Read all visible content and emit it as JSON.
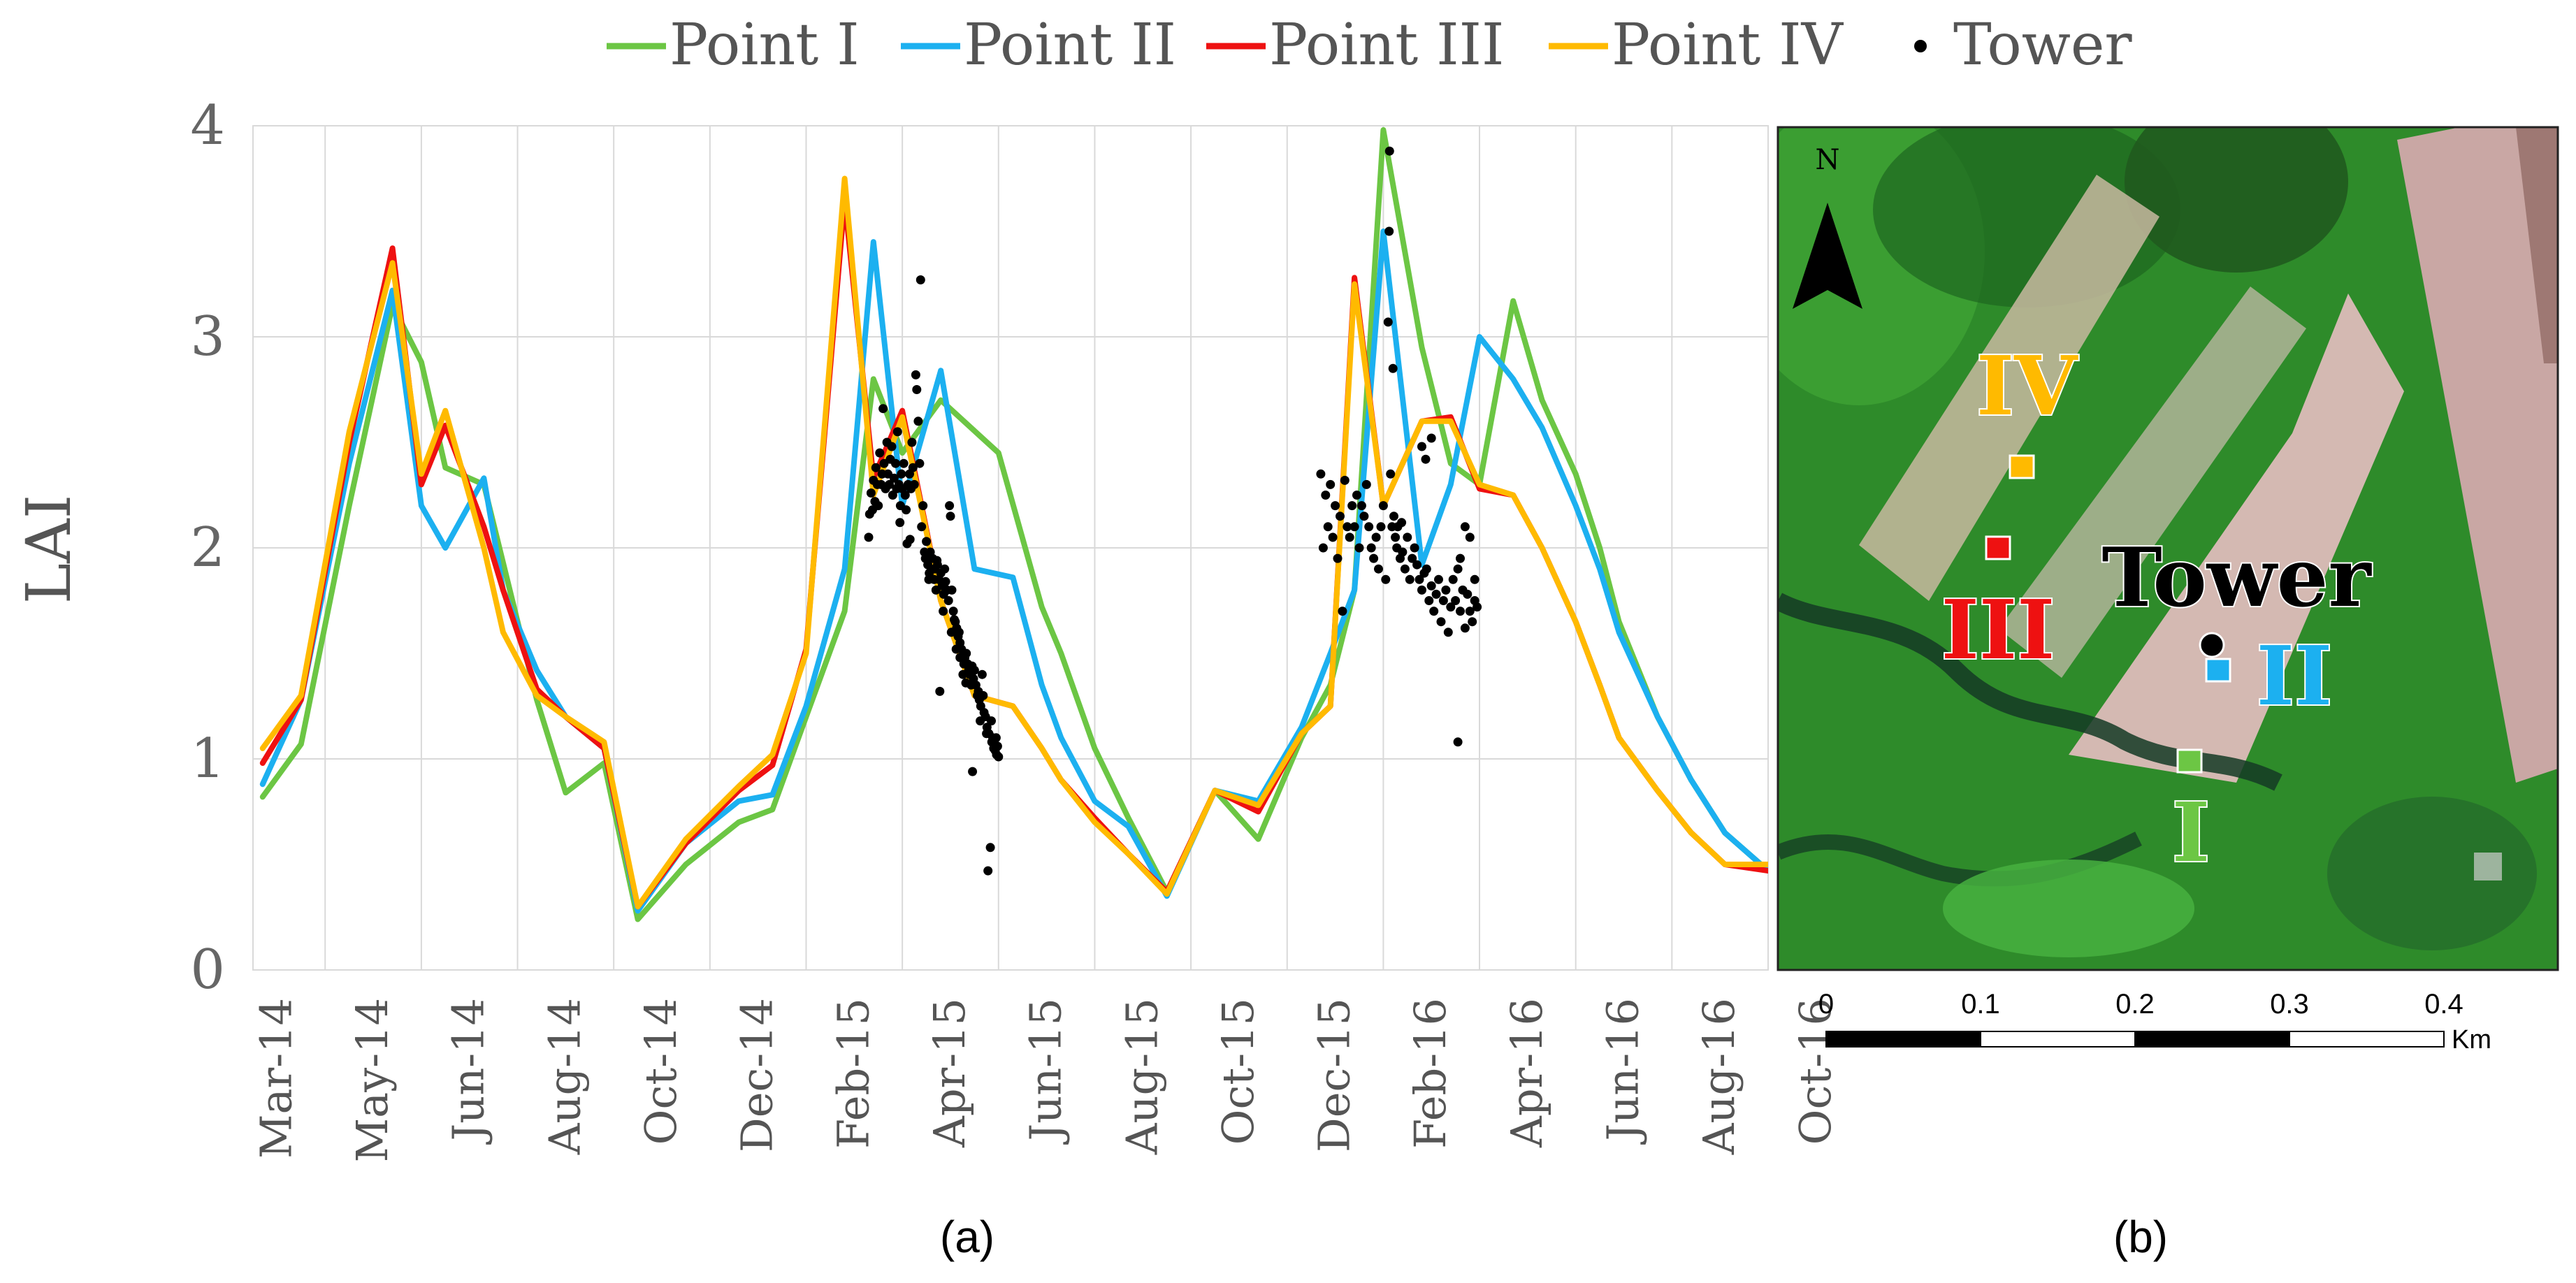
{
  "legend": {
    "items": [
      {
        "label": "Point I",
        "color": "#6CC644",
        "kind": "line"
      },
      {
        "label": "Point II",
        "color": "#1CB0F0",
        "kind": "line"
      },
      {
        "label": "Point III",
        "color": "#EE1111",
        "kind": "line"
      },
      {
        "label": "Point IV",
        "color": "#FFBA00",
        "kind": "line"
      },
      {
        "label": "Tower",
        "color": "#000000",
        "kind": "dot"
      }
    ]
  },
  "captions": {
    "a": "(a)",
    "b": "(b)"
  },
  "chart_data": {
    "type": "line",
    "title": "",
    "xlabel": "",
    "ylabel": "LAI",
    "ylim": [
      0,
      4
    ],
    "yticks": [
      "0",
      "1",
      "2",
      "3",
      "4"
    ],
    "xlim": [
      0,
      31.5
    ],
    "grid": true,
    "legend_position": "top",
    "categories": [
      "Mar-14",
      "May-14",
      "Jun-14",
      "Aug-14",
      "Oct-14",
      "Dec-14",
      "Feb-15",
      "Apr-15",
      "Jun-15",
      "Aug-15",
      "Oct-15",
      "Dec-15",
      "Feb-16",
      "Apr-16",
      "Jun-16",
      "Aug-16",
      "Oct-16"
    ],
    "series": [
      {
        "name": "Point I",
        "color": "#6CC644",
        "x": [
          0.2,
          1.0,
          2.0,
          2.9,
          3.5,
          4.0,
          4.8,
          5.9,
          6.5,
          7.3,
          8.0,
          9.0,
          10.1,
          10.8,
          11.5,
          12.3,
          12.9,
          13.5,
          14.3,
          15.5,
          16.4,
          16.8,
          17.5,
          18.2,
          19.0,
          20.0,
          20.9,
          21.8,
          22.4,
          22.9,
          23.5,
          24.3,
          24.9,
          25.5,
          26.2,
          26.8,
          27.5,
          28.0,
          28.4,
          29.2,
          29.9,
          30.6,
          31.5
        ],
        "y": [
          0.82,
          1.07,
          2.2,
          3.15,
          2.88,
          2.38,
          2.3,
          1.28,
          0.84,
          0.98,
          0.24,
          0.5,
          0.7,
          0.76,
          1.2,
          1.7,
          2.8,
          2.45,
          2.7,
          2.45,
          1.72,
          1.5,
          1.05,
          0.72,
          0.37,
          0.85,
          0.62,
          1.1,
          1.35,
          1.8,
          3.98,
          2.95,
          2.4,
          2.3,
          3.17,
          2.7,
          2.35,
          2.0,
          1.65,
          1.2,
          0.9,
          0.65,
          0.47
        ]
      },
      {
        "name": "Point II",
        "color": "#1CB0F0",
        "x": [
          0.2,
          1.0,
          2.0,
          2.9,
          3.5,
          4.0,
          4.8,
          5.2,
          5.9,
          6.5,
          7.3,
          8.0,
          9.0,
          10.1,
          10.8,
          11.5,
          12.3,
          12.9,
          13.5,
          14.3,
          15.0,
          15.8,
          16.4,
          16.8,
          17.5,
          18.2,
          19.0,
          20.0,
          20.9,
          21.8,
          22.4,
          22.9,
          23.5,
          24.3,
          24.9,
          25.5,
          26.2,
          26.8,
          27.5,
          28.0,
          28.4,
          29.2,
          29.9,
          30.6,
          31.5
        ],
        "y": [
          0.88,
          1.28,
          2.4,
          3.22,
          2.2,
          2.0,
          2.33,
          1.8,
          1.42,
          1.2,
          1.05,
          0.28,
          0.6,
          0.8,
          0.83,
          1.25,
          1.9,
          3.45,
          2.2,
          2.84,
          1.9,
          1.86,
          1.35,
          1.1,
          0.8,
          0.68,
          0.35,
          0.85,
          0.8,
          1.15,
          1.5,
          1.8,
          3.5,
          1.92,
          2.3,
          3.0,
          2.8,
          2.57,
          2.2,
          1.9,
          1.6,
          1.2,
          0.9,
          0.65,
          0.47
        ]
      },
      {
        "name": "Point III",
        "color": "#EE1111",
        "x": [
          0.2,
          1.0,
          2.0,
          2.9,
          3.5,
          4.0,
          4.8,
          5.2,
          5.9,
          6.5,
          7.3,
          8.0,
          9.0,
          10.1,
          10.8,
          11.5,
          12.3,
          12.9,
          13.5,
          14.3,
          15.0,
          15.8,
          16.4,
          16.8,
          17.5,
          18.2,
          19.0,
          20.0,
          20.9,
          21.8,
          22.4,
          22.9,
          23.5,
          24.3,
          24.9,
          25.5,
          26.2,
          26.8,
          27.5,
          28.0,
          28.4,
          29.2,
          29.9,
          30.6,
          31.5
        ],
        "y": [
          0.98,
          1.28,
          2.5,
          3.42,
          2.3,
          2.58,
          2.1,
          1.8,
          1.33,
          1.2,
          1.05,
          0.3,
          0.6,
          0.85,
          0.97,
          1.52,
          3.65,
          2.33,
          2.65,
          1.75,
          1.3,
          1.25,
          1.05,
          0.9,
          0.72,
          0.55,
          0.37,
          0.85,
          0.75,
          1.12,
          1.25,
          3.28,
          2.2,
          2.6,
          2.62,
          2.28,
          2.25,
          2.0,
          1.65,
          1.35,
          1.1,
          0.85,
          0.65,
          0.5,
          0.47
        ]
      },
      {
        "name": "Point IV",
        "color": "#FFBA00",
        "x": [
          0.2,
          1.0,
          2.0,
          2.9,
          3.5,
          4.0,
          4.8,
          5.2,
          5.9,
          6.5,
          7.3,
          8.0,
          9.0,
          10.1,
          10.8,
          11.5,
          12.3,
          12.9,
          13.5,
          14.3,
          15.0,
          15.8,
          16.4,
          16.8,
          17.5,
          18.2,
          19.0,
          20.0,
          20.9,
          21.8,
          22.4,
          22.9,
          23.5,
          24.3,
          24.9,
          25.5,
          26.2,
          26.8,
          27.5,
          28.0,
          28.4,
          29.2,
          29.9,
          30.6,
          31.5
        ],
        "y": [
          1.05,
          1.3,
          2.55,
          3.35,
          2.35,
          2.65,
          2.0,
          1.6,
          1.3,
          1.2,
          1.08,
          0.3,
          0.62,
          0.87,
          1.02,
          1.5,
          3.75,
          2.25,
          2.62,
          1.75,
          1.3,
          1.25,
          1.05,
          0.9,
          0.7,
          0.55,
          0.36,
          0.85,
          0.78,
          1.12,
          1.25,
          3.25,
          2.2,
          2.6,
          2.6,
          2.3,
          2.25,
          2.0,
          1.65,
          1.35,
          1.1,
          0.85,
          0.65,
          0.5,
          0.5
        ]
      }
    ],
    "scatter": {
      "name": "Tower",
      "color": "#000000",
      "points": [
        [
          12.8,
          2.05
        ],
        [
          12.82,
          2.16
        ],
        [
          12.85,
          2.26
        ],
        [
          12.88,
          2.18
        ],
        [
          12.9,
          2.32
        ],
        [
          12.93,
          2.22
        ],
        [
          12.95,
          2.38
        ],
        [
          12.98,
          2.3
        ],
        [
          13.0,
          2.2
        ],
        [
          13.03,
          2.45
        ],
        [
          13.06,
          2.3
        ],
        [
          13.08,
          2.35
        ],
        [
          13.1,
          2.66
        ],
        [
          13.12,
          2.4
        ],
        [
          13.15,
          2.28
        ],
        [
          13.18,
          2.5
        ],
        [
          13.2,
          2.35
        ],
        [
          13.23,
          2.3
        ],
        [
          13.25,
          2.42
        ],
        [
          13.28,
          2.48
        ],
        [
          13.3,
          2.25
        ],
        [
          13.33,
          2.33
        ],
        [
          13.36,
          2.4
        ],
        [
          13.38,
          2.28
        ],
        [
          13.4,
          2.55
        ],
        [
          13.43,
          2.3
        ],
        [
          13.46,
          2.2
        ],
        [
          13.48,
          2.35
        ],
        [
          13.5,
          2.28
        ],
        [
          13.53,
          2.4
        ],
        [
          13.56,
          2.25
        ],
        [
          13.58,
          2.18
        ],
        [
          13.6,
          2.02
        ],
        [
          13.62,
          2.3
        ],
        [
          13.65,
          2.35
        ],
        [
          13.68,
          2.28
        ],
        [
          13.7,
          2.5
        ],
        [
          13.72,
          2.38
        ],
        [
          13.75,
          2.3
        ],
        [
          13.78,
          2.82
        ],
        [
          13.8,
          2.75
        ],
        [
          13.83,
          2.6
        ],
        [
          13.86,
          2.4
        ],
        [
          13.88,
          3.27
        ],
        [
          13.9,
          2.1
        ],
        [
          13.93,
          2.2
        ],
        [
          13.96,
          1.98
        ],
        [
          13.98,
          1.95
        ],
        [
          14.0,
          2.03
        ],
        [
          14.03,
          1.92
        ],
        [
          14.06,
          1.88
        ],
        [
          14.08,
          1.98
        ],
        [
          14.1,
          1.9
        ],
        [
          14.13,
          1.95
        ],
        [
          14.16,
          1.85
        ],
        [
          14.18,
          1.9
        ],
        [
          14.2,
          1.8
        ],
        [
          14.23,
          1.92
        ],
        [
          14.26,
          1.85
        ],
        [
          14.28,
          1.32
        ],
        [
          14.3,
          1.88
        ],
        [
          14.33,
          1.82
        ],
        [
          14.36,
          1.78
        ],
        [
          14.38,
          1.9
        ],
        [
          14.4,
          1.84
        ],
        [
          14.43,
          1.8
        ],
        [
          14.46,
          1.75
        ],
        [
          14.48,
          2.2
        ],
        [
          14.5,
          2.15
        ],
        [
          14.53,
          1.8
        ],
        [
          14.56,
          1.7
        ],
        [
          14.58,
          1.66
        ],
        [
          14.6,
          1.65
        ],
        [
          14.63,
          1.62
        ],
        [
          14.66,
          1.58
        ],
        [
          14.68,
          1.6
        ],
        [
          14.7,
          1.55
        ],
        [
          14.73,
          1.52
        ],
        [
          14.76,
          1.4
        ],
        [
          14.78,
          1.45
        ],
        [
          14.8,
          1.48
        ],
        [
          14.83,
          1.5
        ],
        [
          14.86,
          1.45
        ],
        [
          14.88,
          1.42
        ],
        [
          14.9,
          1.4
        ],
        [
          14.93,
          1.35
        ],
        [
          14.96,
          0.94
        ],
        [
          14.98,
          1.38
        ],
        [
          15.0,
          1.42
        ],
        [
          15.03,
          1.35
        ],
        [
          15.06,
          1.3
        ],
        [
          15.08,
          1.32
        ],
        [
          15.1,
          1.28
        ],
        [
          15.13,
          1.25
        ],
        [
          15.16,
          1.4
        ],
        [
          15.18,
          1.3
        ],
        [
          15.2,
          1.22
        ],
        [
          15.23,
          1.2
        ],
        [
          15.26,
          1.15
        ],
        [
          15.28,
          0.47
        ],
        [
          15.3,
          1.12
        ],
        [
          15.33,
          0.58
        ],
        [
          15.36,
          1.08
        ],
        [
          15.38,
          1.1
        ],
        [
          15.4,
          1.05
        ],
        [
          15.43,
          1.04
        ],
        [
          15.46,
          1.02
        ],
        [
          15.48,
          1.06
        ],
        [
          15.5,
          1.01
        ],
        [
          14.7,
          1.48
        ],
        [
          14.82,
          1.36
        ],
        [
          14.95,
          1.44
        ],
        [
          15.12,
          1.18
        ],
        [
          15.25,
          1.12
        ],
        [
          15.35,
          1.18
        ],
        [
          15.45,
          1.1
        ],
        [
          13.45,
          2.12
        ],
        [
          13.66,
          2.04
        ],
        [
          14.05,
          1.85
        ],
        [
          14.22,
          1.94
        ],
        [
          14.35,
          1.7
        ],
        [
          14.52,
          1.6
        ],
        [
          14.62,
          1.52
        ],
        [
          22.2,
          2.35
        ],
        [
          22.25,
          2.0
        ],
        [
          22.3,
          2.25
        ],
        [
          22.35,
          2.1
        ],
        [
          22.4,
          2.3
        ],
        [
          22.45,
          2.05
        ],
        [
          22.5,
          2.2
        ],
        [
          22.55,
          1.95
        ],
        [
          22.6,
          2.15
        ],
        [
          22.65,
          1.7
        ],
        [
          22.7,
          2.32
        ],
        [
          22.75,
          2.1
        ],
        [
          22.8,
          2.05
        ],
        [
          22.85,
          2.2
        ],
        [
          22.9,
          2.1
        ],
        [
          22.95,
          2.25
        ],
        [
          23.0,
          2.0
        ],
        [
          23.05,
          2.2
        ],
        [
          23.1,
          2.15
        ],
        [
          23.15,
          2.3
        ],
        [
          23.2,
          2.1
        ],
        [
          23.25,
          2.0
        ],
        [
          23.3,
          1.95
        ],
        [
          23.35,
          2.05
        ],
        [
          23.4,
          1.9
        ],
        [
          23.45,
          2.1
        ],
        [
          23.5,
          2.2
        ],
        [
          23.55,
          1.85
        ],
        [
          23.6,
          3.07
        ],
        [
          23.62,
          3.5
        ],
        [
          23.65,
          2.35
        ],
        [
          23.68,
          2.1
        ],
        [
          23.72,
          2.15
        ],
        [
          23.75,
          2.05
        ],
        [
          23.78,
          2.0
        ],
        [
          23.8,
          2.1
        ],
        [
          23.85,
          1.95
        ],
        [
          23.88,
          2.12
        ],
        [
          23.9,
          1.98
        ],
        [
          23.95,
          1.9
        ],
        [
          24.0,
          2.05
        ],
        [
          24.05,
          1.85
        ],
        [
          24.1,
          1.95
        ],
        [
          24.15,
          2.0
        ],
        [
          24.2,
          1.92
        ],
        [
          24.25,
          1.85
        ],
        [
          24.3,
          1.8
        ],
        [
          24.35,
          1.88
        ],
        [
          24.4,
          1.9
        ],
        [
          24.45,
          1.75
        ],
        [
          24.5,
          1.82
        ],
        [
          24.55,
          1.7
        ],
        [
          24.6,
          1.78
        ],
        [
          24.65,
          1.85
        ],
        [
          24.7,
          1.65
        ],
        [
          24.75,
          1.75
        ],
        [
          24.8,
          1.8
        ],
        [
          24.85,
          1.6
        ],
        [
          24.9,
          1.72
        ],
        [
          24.95,
          1.85
        ],
        [
          25.0,
          1.75
        ],
        [
          25.05,
          1.9
        ],
        [
          25.1,
          1.7
        ],
        [
          25.15,
          1.8
        ],
        [
          25.2,
          1.62
        ],
        [
          25.25,
          1.78
        ],
        [
          25.3,
          1.7
        ],
        [
          25.35,
          1.65
        ],
        [
          25.4,
          1.75
        ],
        [
          25.45,
          1.72
        ],
        [
          23.63,
          3.88
        ],
        [
          23.7,
          2.85
        ],
        [
          24.3,
          2.48
        ],
        [
          24.38,
          2.42
        ],
        [
          24.5,
          2.52
        ],
        [
          25.05,
          1.08
        ],
        [
          25.2,
          2.1
        ],
        [
          25.3,
          2.05
        ],
        [
          25.4,
          1.85
        ],
        [
          25.1,
          1.95
        ]
      ]
    }
  },
  "map": {
    "north_label": "N",
    "points": [
      {
        "label": "IV",
        "color": "#FFBA00"
      },
      {
        "label": "III",
        "color": "#EE1111"
      },
      {
        "label": "Tower",
        "color": "#000000"
      },
      {
        "label": "II",
        "color": "#1CB0F0"
      },
      {
        "label": "I",
        "color": "#6CC644"
      }
    ],
    "scale": {
      "ticks": [
        "0",
        "0.1",
        "0.2",
        "0.3",
        "0.4"
      ],
      "unit": "Km"
    }
  }
}
